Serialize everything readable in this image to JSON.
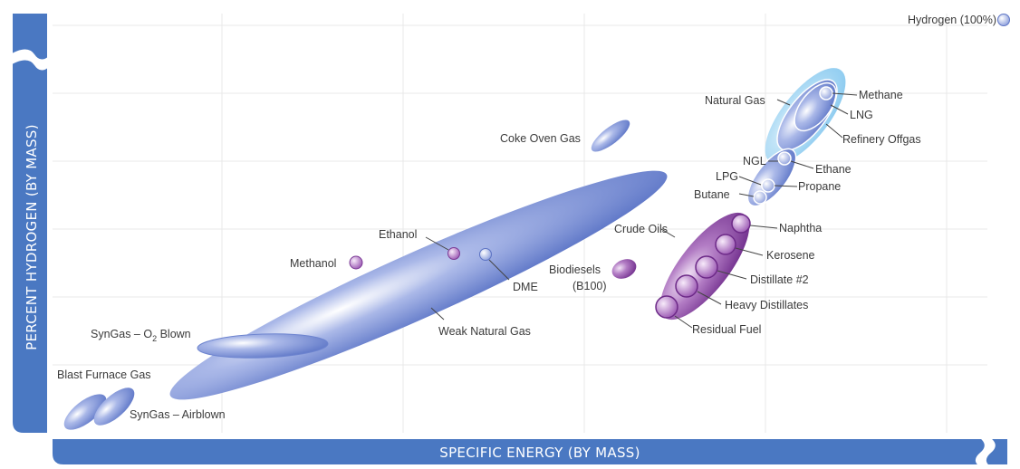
{
  "axes": {
    "x_title": "SPECIFIC ENERGY (BY MASS)",
    "y_title": "PERCENT HYDROGEN (BY MASS)"
  },
  "legend": {
    "label": "Hydrogen (100%)"
  },
  "colors": {
    "axis_band": "#4a78c2",
    "blue_fuel": "#7b91d6",
    "purple_fuel": "#8e4ba6",
    "lightblue_halo": "#9fd3f1",
    "grid": "#e6e6e6"
  },
  "fuels": {
    "blast_furnace_gas": "Blast Furnace Gas",
    "syngas_airblown": "SynGas – Airblown",
    "syngas_o2": "SynGas – O",
    "syngas_o2_sub": "2",
    "syngas_o2_suffix": " Blown",
    "weak_natural_gas": "Weak Natural Gas",
    "methanol": "Methanol",
    "ethanol": "Ethanol",
    "dme": "DME",
    "biodiesels": "Biodiesels",
    "biodiesels_sub": "(B100)",
    "coke_oven_gas": "Coke Oven Gas",
    "crude_oils": "Crude Oils",
    "naphtha": "Naphtha",
    "kerosene": "Kerosene",
    "distillate_2": "Distillate #2",
    "heavy_distillates": "Heavy Distillates",
    "residual_fuel": "Residual Fuel",
    "natural_gas": "Natural Gas",
    "methane": "Methane",
    "lng": "LNG",
    "refinery_offgas": "Refinery Offgas",
    "ngl": "NGL",
    "ethane": "Ethane",
    "lpg": "LPG",
    "propane": "Propane",
    "butane": "Butane"
  }
}
